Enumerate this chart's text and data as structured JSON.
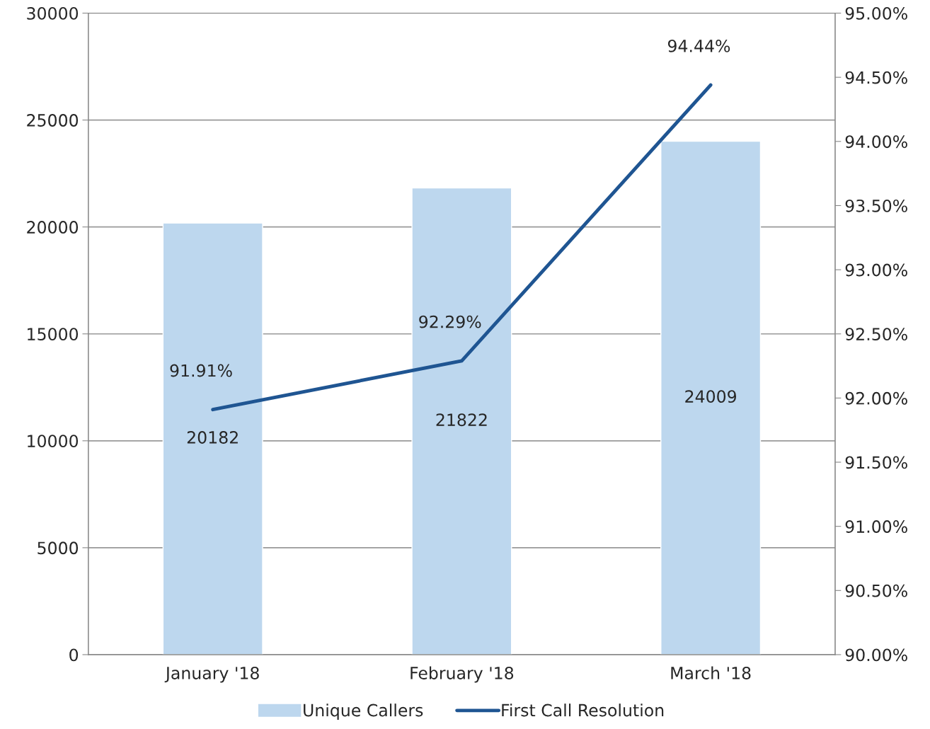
{
  "chart_data": {
    "type": "bar",
    "categories": [
      "January '18",
      "February '18",
      "March '18"
    ],
    "series": [
      {
        "name": "Unique Callers",
        "color": "#bdd7ee",
        "values": [
          20182,
          21822,
          24009
        ],
        "value_labels": [
          "20182",
          "21822",
          "24009"
        ]
      },
      {
        "name": "First Call Resolution",
        "type": "line",
        "axis": "y2",
        "color": "#1f5592",
        "values": [
          91.91,
          92.29,
          94.44
        ],
        "value_labels": [
          "91.91%",
          "92.29%",
          "94.44%"
        ]
      }
    ],
    "ylim": [
      0,
      30000
    ],
    "yticks": [
      0,
      5000,
      10000,
      15000,
      20000,
      25000,
      30000
    ],
    "y2lim": [
      90,
      95
    ],
    "y2ticks": [
      {
        "value": 90,
        "label": "90.00%"
      },
      {
        "value": 90.5,
        "label": "90.50%"
      },
      {
        "value": 91,
        "label": "91.00%"
      },
      {
        "value": 91.5,
        "label": "91.50%"
      },
      {
        "value": 92,
        "label": "92.00%"
      },
      {
        "value": 92.5,
        "label": "92.50%"
      },
      {
        "value": 93,
        "label": "93.00%"
      },
      {
        "value": 93.5,
        "label": "93.50%"
      },
      {
        "value": 94,
        "label": "94.00%"
      },
      {
        "value": 94.5,
        "label": "94.50%"
      },
      {
        "value": 95,
        "label": "95.00%"
      }
    ],
    "grid": "y",
    "legend": "bottom",
    "marker": "none",
    "line_style": "solid"
  }
}
